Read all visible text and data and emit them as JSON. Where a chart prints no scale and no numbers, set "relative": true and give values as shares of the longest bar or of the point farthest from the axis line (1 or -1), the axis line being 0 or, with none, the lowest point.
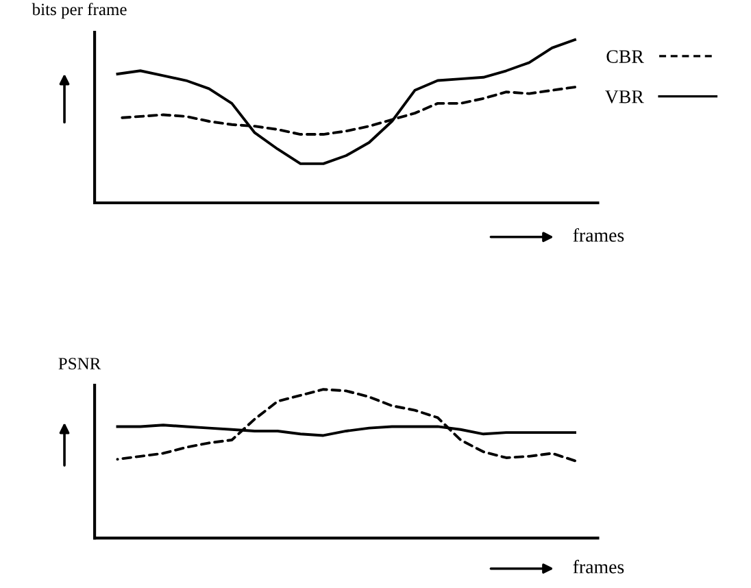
{
  "chart_data": [
    {
      "type": "line",
      "relative": true,
      "ylabel": "bits per frame",
      "xlabel": "frames",
      "legend": "top right",
      "grid": false,
      "marker": "none",
      "categories": [
        null,
        null,
        null,
        null,
        null,
        null,
        null,
        null,
        null,
        null,
        null,
        null,
        null,
        null,
        null,
        null,
        null,
        null,
        null,
        null,
        null
      ],
      "series": [
        {
          "name": "CBR",
          "color": "#000000",
          "line_style": "dashed",
          "values": [
            0.52,
            0.53,
            0.54,
            0.53,
            0.5,
            0.48,
            0.47,
            0.45,
            0.42,
            0.42,
            0.44,
            0.47,
            0.51,
            0.55,
            0.61,
            0.61,
            0.64,
            0.68,
            0.67,
            0.69,
            0.71
          ]
        },
        {
          "name": "VBR",
          "color": "#000000",
          "line_style": "solid",
          "values": [
            0.79,
            0.81,
            0.78,
            0.75,
            0.7,
            0.61,
            0.43,
            0.33,
            0.24,
            0.24,
            0.29,
            0.37,
            0.5,
            0.69,
            0.75,
            0.76,
            0.77,
            0.81,
            0.86,
            0.95,
            1.0
          ]
        }
      ]
    },
    {
      "type": "line",
      "relative": true,
      "ylabel": "PSNR",
      "xlabel": "frames",
      "grid": false,
      "marker": "none",
      "categories": [
        null,
        null,
        null,
        null,
        null,
        null,
        null,
        null,
        null,
        null,
        null,
        null,
        null,
        null,
        null,
        null,
        null,
        null,
        null,
        null,
        null
      ],
      "series": [
        {
          "color": "#000000",
          "line_style": "dashed",
          "values": [
            0.53,
            0.55,
            0.57,
            0.61,
            0.64,
            0.66,
            0.8,
            0.92,
            0.96,
            1.0,
            0.99,
            0.95,
            0.89,
            0.86,
            0.81,
            0.66,
            0.58,
            0.54,
            0.55,
            0.57,
            0.52
          ]
        },
        {
          "color": "#000000",
          "line_style": "solid",
          "values": [
            0.75,
            0.75,
            0.76,
            0.75,
            0.74,
            0.73,
            0.72,
            0.72,
            0.7,
            0.69,
            0.72,
            0.74,
            0.75,
            0.75,
            0.75,
            0.73,
            0.7,
            0.71,
            0.71,
            0.71,
            0.71
          ]
        }
      ]
    }
  ]
}
